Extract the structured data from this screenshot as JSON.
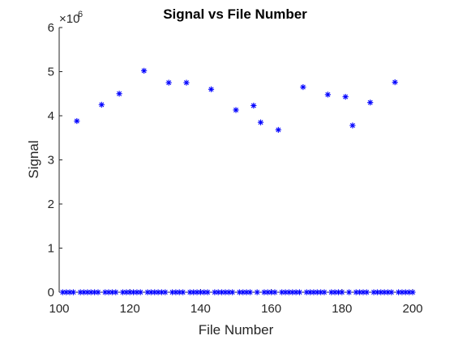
{
  "chart_data": {
    "type": "scatter",
    "title": "Signal vs File Number",
    "xlabel": "File Number",
    "ylabel": "Signal",
    "xlim": [
      100,
      200
    ],
    "ylim": [
      0,
      6
    ],
    "y_scale_exponent_label": "×10",
    "y_scale_exponent": "6",
    "xticks": [
      "100",
      "120",
      "140",
      "160",
      "180",
      "200"
    ],
    "yticks": [
      "0",
      "1",
      "2",
      "3",
      "4",
      "5",
      "6"
    ],
    "grid": false,
    "legend": "none",
    "marker": "asterisk",
    "marker_color": "#0000ff",
    "y_units_multiplier": 1000000,
    "x": [
      101,
      102,
      103,
      104,
      105,
      106,
      107,
      108,
      109,
      110,
      111,
      112,
      113,
      114,
      115,
      116,
      117,
      118,
      119,
      120,
      121,
      122,
      123,
      124,
      125,
      126,
      127,
      128,
      129,
      130,
      131,
      132,
      133,
      134,
      135,
      136,
      137,
      138,
      139,
      140,
      141,
      142,
      143,
      144,
      145,
      146,
      147,
      148,
      149,
      150,
      151,
      152,
      153,
      154,
      155,
      156,
      157,
      158,
      159,
      160,
      161,
      162,
      163,
      164,
      165,
      166,
      167,
      168,
      169,
      170,
      171,
      172,
      173,
      174,
      175,
      176,
      177,
      178,
      179,
      180,
      181,
      182,
      183,
      184,
      185,
      186,
      187,
      188,
      189,
      190,
      191,
      192,
      193,
      194,
      195,
      196,
      197,
      198,
      199,
      200
    ],
    "y": [
      0,
      0,
      0,
      0,
      3.88,
      0,
      0,
      0,
      0,
      0,
      0,
      4.25,
      0,
      0,
      0,
      0,
      4.5,
      0,
      0,
      0,
      0,
      0,
      0,
      5.02,
      0,
      0,
      0,
      0,
      0,
      0,
      4.75,
      0,
      0,
      0,
      0,
      4.75,
      0,
      0,
      0,
      0,
      0,
      0,
      4.6,
      0,
      0,
      0,
      0,
      0,
      0,
      4.13,
      0,
      0,
      0,
      0,
      4.23,
      0,
      3.85,
      0,
      0,
      0,
      0,
      3.68,
      0,
      0,
      0,
      0,
      0,
      0,
      4.65,
      0,
      0,
      0,
      0,
      0,
      0,
      4.48,
      0,
      0,
      0,
      0,
      4.43,
      0,
      3.78,
      0,
      0,
      0,
      0,
      4.3,
      0,
      0,
      0,
      0,
      0,
      0,
      4.76,
      0,
      0,
      0,
      0,
      0
    ]
  }
}
